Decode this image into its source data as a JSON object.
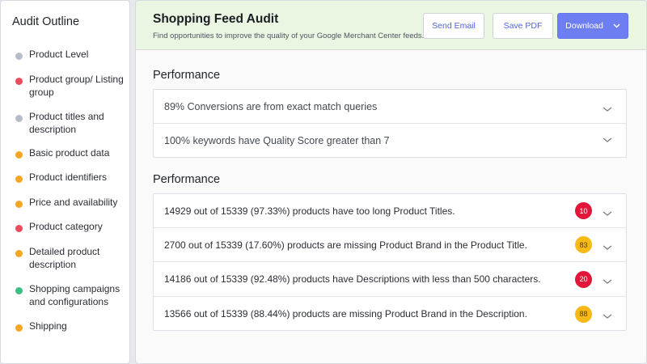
{
  "sidebar": {
    "title": "Audit Outline",
    "items": [
      {
        "label": "Product Level",
        "color": "#b7bdc8"
      },
      {
        "label": "Product group/ Listing group",
        "color": "#ef4a5b"
      },
      {
        "label": "Product titles and description",
        "color": "#b7bdc8"
      },
      {
        "label": "Basic product data",
        "color": "#f5a623"
      },
      {
        "label": "Product identifiers",
        "color": "#f5a623"
      },
      {
        "label": "Price and availability",
        "color": "#f5a623"
      },
      {
        "label": "Product category",
        "color": "#ef4a5b"
      },
      {
        "label": "Detailed product description",
        "color": "#f5a623"
      },
      {
        "label": "Shopping campaigns and configurations",
        "color": "#3bbf85"
      },
      {
        "label": "Shipping",
        "color": "#f5a623"
      }
    ]
  },
  "header": {
    "title": "Shopping Feed Audit",
    "subtitle": "Find opportunities to improve the quality of your Google Merchant Center feeds.",
    "send_email": "Send Email",
    "save_pdf": "Save PDF",
    "download": "Download"
  },
  "performance1": {
    "title": "Performance",
    "rows": [
      {
        "text": "89% Conversions are from exact match queries"
      },
      {
        "text": "100% keywords have Quality Score greater than 7"
      }
    ]
  },
  "performance2": {
    "title": "Performance",
    "rows": [
      {
        "text": "14929 out of 15339 (97.33%) products have too long Product Titles.",
        "badge": "10",
        "badge_color": "#e0173a",
        "badge_text_color": "#ffffff"
      },
      {
        "text": "2700 out of 15339 (17.60%) products are missing Product Brand in the Product Title.",
        "badge": "83",
        "badge_color": "#f6b916",
        "badge_text_color": "#5a3e00"
      },
      {
        "text": "14186 out of 15339 (92.48%) products have Descriptions with less than 500 characters.",
        "badge": "20",
        "badge_color": "#e0173a",
        "badge_text_color": "#ffffff"
      },
      {
        "text": "13566 out of 15339 (88.44%) products are missing Product Brand in the Description.",
        "badge": "88",
        "badge_color": "#f6b916",
        "badge_text_color": "#5a3e00"
      }
    ]
  }
}
